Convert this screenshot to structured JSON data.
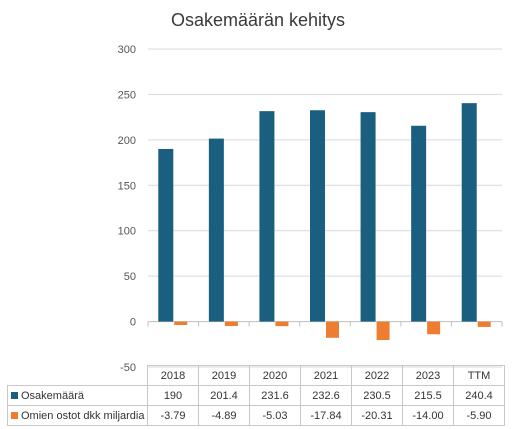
{
  "chart_data": {
    "type": "bar",
    "title": "Osakemäärän kehitys",
    "categories": [
      "2018",
      "2019",
      "2020",
      "2021",
      "2022",
      "2023",
      "TTM"
    ],
    "ylim": [
      -50,
      300
    ],
    "yticks": [
      -50,
      0,
      50,
      100,
      150,
      200,
      250,
      300
    ],
    "grid": true,
    "legend": "data table below chart",
    "series": [
      {
        "name": "Osakemäärä",
        "color": "#1a5e80",
        "values": [
          190,
          201.4,
          231.6,
          232.6,
          230.5,
          215.5,
          240.4
        ],
        "labels": [
          "190",
          "201.4",
          "231.6",
          "232.6",
          "230.5",
          "215.5",
          "240.4"
        ]
      },
      {
        "name": "Omien ostot dkk miljardia",
        "color": "#ed7d31",
        "values": [
          -3.79,
          -4.89,
          -5.03,
          -17.84,
          -20.31,
          -14.0,
          -5.9
        ],
        "labels": [
          "-3.79",
          "-4.89",
          "-5.03",
          "-17.84",
          "-20.31",
          "-14.00",
          "-5.90"
        ]
      }
    ]
  }
}
